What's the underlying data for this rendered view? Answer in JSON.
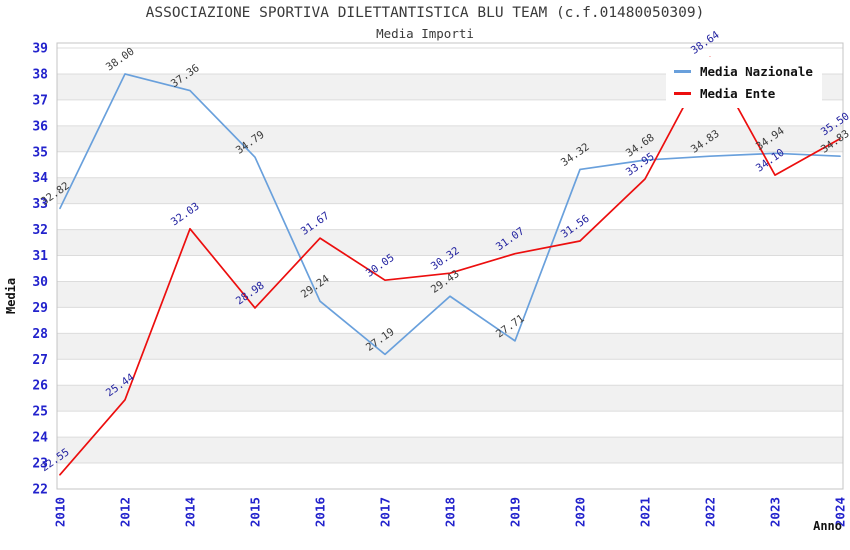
{
  "title": "ASSOCIAZIONE SPORTIVA DILETTANTISTICA BLU TEAM (c.f.01480050309)",
  "subtitle": "Media Importi",
  "chart_data": {
    "type": "line",
    "title": "ASSOCIAZIONE SPORTIVA DILETTANTISTICA BLU TEAM (c.f.01480050309)",
    "subtitle": "Media Importi",
    "xlabel": "Anno",
    "ylabel": "Media",
    "ylim": [
      22,
      39
    ],
    "y_tick_step": 1,
    "y_ticks": [
      22,
      23,
      24,
      25,
      26,
      27,
      28,
      29,
      30,
      31,
      32,
      33,
      34,
      35,
      36,
      37,
      38,
      39
    ],
    "categories": [
      "2010",
      "2012",
      "2014",
      "2015",
      "2016",
      "2017",
      "2018",
      "2019",
      "2020",
      "2021",
      "2022",
      "2023",
      "2024"
    ],
    "series": [
      {
        "name": "Media Nazionale",
        "color": "#69a0dc",
        "label_color": "#3a3a3a",
        "values": [
          32.82,
          38.0,
          37.36,
          34.79,
          29.24,
          27.19,
          29.43,
          27.71,
          34.32,
          34.68,
          34.83,
          34.94,
          34.83
        ]
      },
      {
        "name": "Media Ente",
        "color": "#ec0e0e",
        "label_color": "#2323a0",
        "values": [
          22.55,
          25.44,
          32.03,
          28.98,
          31.67,
          30.05,
          30.32,
          31.07,
          31.56,
          33.95,
          38.64,
          34.1,
          35.5
        ]
      }
    ],
    "grid": "horizontal, alternating shaded bands per unit",
    "legend_position": "top-right",
    "point_label_format": "2 decimals, rotated -35deg"
  },
  "style": {
    "axis_tick_color": "#2222cc",
    "band_color": "#f1f1f1",
    "grid_color": "#dcdcdc",
    "plot_border_color": "#c4c4c4",
    "background": "#ffffff"
  }
}
